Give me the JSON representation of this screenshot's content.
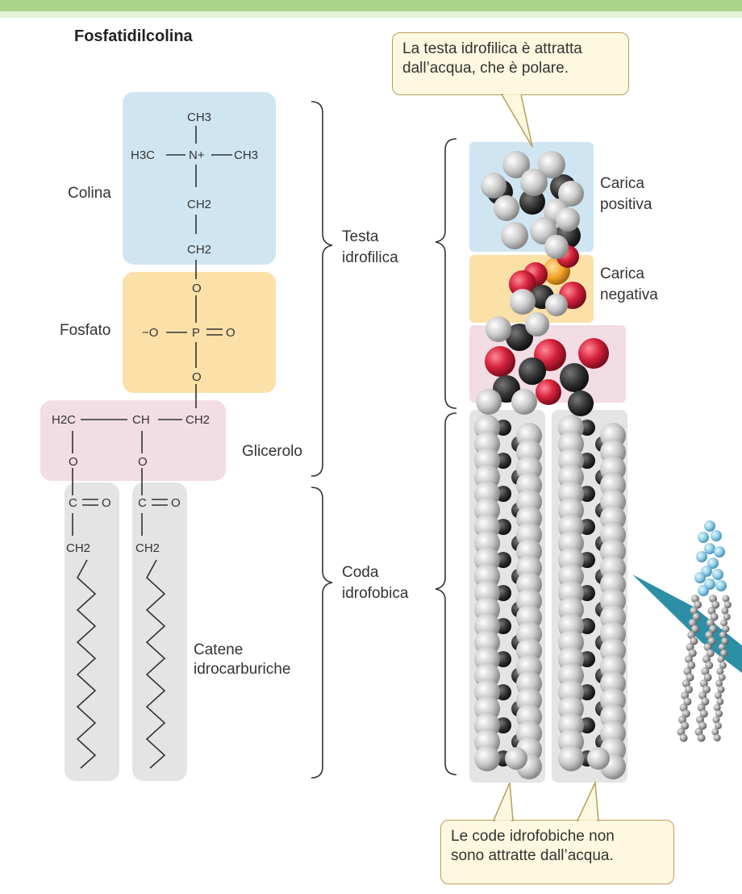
{
  "title": "Fosfatidilcolina",
  "labels": {
    "colina": "Colina",
    "fosfato": "Fosfato",
    "glicerolo": "Glicerolo",
    "catene_1": "Catene",
    "catene_2": "idrocarburiche",
    "testa_1": "Testa",
    "testa_2": "idrofilica",
    "coda_1": "Coda",
    "coda_2": "idrofobica",
    "carica_pos_1": "Carica",
    "carica_pos_2": "positiva",
    "carica_neg_1": "Carica",
    "carica_neg_2": "negativa"
  },
  "callouts": {
    "top_1": "La testa idrofilica è attratta",
    "top_2": "dall’acqua, che è polare.",
    "bottom_1": "Le code idrofobiche non",
    "bottom_2": "sono attratte dall’acqua."
  },
  "formula": {
    "ch3_top": "CH3",
    "h3c": "H3C",
    "n_plus": "N+",
    "ch3_right": "CH3",
    "ch2_a": "CH2",
    "ch2_b": "CH2",
    "o_a": "O",
    "o_minus": "−O",
    "p": "P",
    "o_double": "O",
    "o_b": "O",
    "h2c": "H2C",
    "ch": "CH",
    "ch2_c": "CH2",
    "o_left": "O",
    "o_mid": "O",
    "c_left": "C",
    "o_left_dbl": "O",
    "c_mid": "C",
    "o_mid_dbl": "O",
    "ch2_left": "CH2",
    "ch2_mid": "CH2"
  },
  "colors": {
    "choline": "#cfe6f2",
    "phosphate": "#fbe0a8",
    "glycerol": "#f1dde3",
    "chain": "#e4e4e4",
    "oxygen": "#d6213c",
    "carbon": "#333333",
    "hydrogen": "#c8c8c8",
    "phosphorus": "#f2a428"
  }
}
